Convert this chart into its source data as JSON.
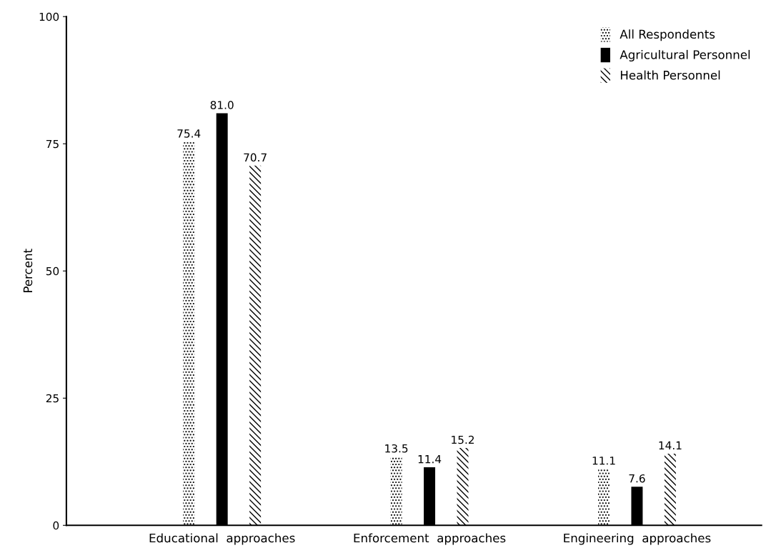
{
  "chart_data": {
    "type": "bar",
    "ylabel": "Percent",
    "categories": [
      "Educational  approaches",
      "Enforcement  approaches",
      "Engineering  approaches"
    ],
    "series": [
      {
        "name": "All Respondents",
        "color": "#000000",
        "values": [
          75.4,
          13.5,
          11.1
        ],
        "value_labels": [
          "75.4",
          "13.5",
          "11.1"
        ]
      },
      {
        "name": "Agricultural Personnel",
        "color": "#000000",
        "values": [
          81.0,
          11.4,
          7.6
        ],
        "value_labels": [
          "81.0",
          "11.4",
          "7.6"
        ]
      },
      {
        "name": "Health Personnel",
        "color": "#000000",
        "values": [
          70.7,
          15.2,
          14.1
        ],
        "value_labels": [
          "70.7",
          "15.2",
          "14.1"
        ]
      }
    ],
    "ylim": [
      0,
      100
    ],
    "yticks": [
      0,
      25,
      50,
      75,
      100
    ],
    "grid": false,
    "legend": "top right"
  }
}
